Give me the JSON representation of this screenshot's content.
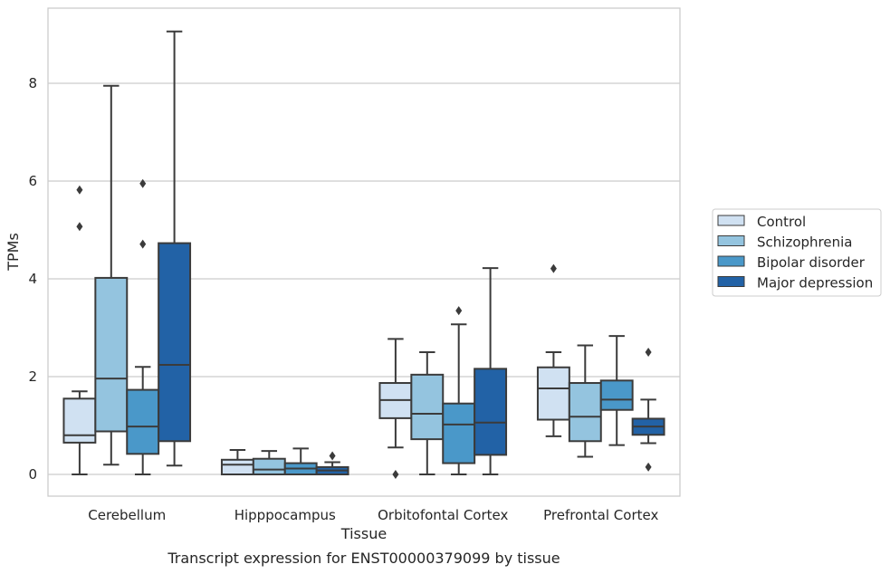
{
  "chart_data": {
    "type": "box",
    "caption": "Transcript expression for ENST00000379099 by tissue",
    "xlabel": "Tissue",
    "ylabel": "TPMs",
    "ylim": [
      -0.45,
      9.6
    ],
    "yticks": [
      0,
      2,
      4,
      6,
      8
    ],
    "grid": true,
    "legend_position": "right",
    "categories": [
      "Cerebellum",
      "Hipppocampus",
      "Orbitofontal Cortex",
      "Prefrontal Cortex"
    ],
    "series": [
      {
        "name": "Control",
        "color": "#d0e1f2",
        "boxes": [
          {
            "whislo": 0.0,
            "q1": 0.65,
            "med": 0.8,
            "q3": 1.55,
            "whishi": 1.7,
            "fliers": [
              5.07,
              5.82
            ]
          },
          {
            "whislo": 0.0,
            "q1": 0.0,
            "med": 0.2,
            "q3": 0.3,
            "whislo_note": "",
            "whishi": 0.5,
            "fliers": []
          },
          {
            "whislo": 0.55,
            "q1": 1.15,
            "med": 1.52,
            "q3": 1.87,
            "whishi": 2.77,
            "fliers": [
              0.0
            ]
          },
          {
            "whislo": 0.78,
            "q1": 1.12,
            "med": 1.76,
            "q3": 2.19,
            "whishi": 2.5,
            "fliers": [
              4.21
            ]
          }
        ]
      },
      {
        "name": "Schizophrenia",
        "color": "#94c4df",
        "boxes": [
          {
            "whislo": 0.2,
            "q1": 0.88,
            "med": 1.96,
            "q3": 4.02,
            "whishi": 7.95,
            "fliers": []
          },
          {
            "whislo": 0.0,
            "q1": 0.0,
            "med": 0.1,
            "q3": 0.32,
            "whishi": 0.48,
            "fliers": []
          },
          {
            "whislo": 0.0,
            "q1": 0.72,
            "med": 1.24,
            "q3": 2.04,
            "whishi": 2.5,
            "fliers": []
          },
          {
            "whislo": 0.36,
            "q1": 0.68,
            "med": 1.18,
            "q3": 1.87,
            "whishi": 2.64,
            "fliers": []
          }
        ]
      },
      {
        "name": "Bipolar disorder",
        "color": "#4a98c9",
        "boxes": [
          {
            "whislo": 0.0,
            "q1": 0.42,
            "med": 0.98,
            "q3": 1.73,
            "whishi": 2.2,
            "fliers": [
              4.71,
              5.95
            ]
          },
          {
            "whislo": 0.0,
            "q1": 0.0,
            "med": 0.12,
            "q3": 0.23,
            "whishi": 0.53,
            "fliers": []
          },
          {
            "whislo": 0.0,
            "q1": 0.23,
            "med": 1.02,
            "q3": 1.45,
            "whishi": 3.07,
            "fliers": [
              3.35
            ]
          },
          {
            "whislo": 0.6,
            "q1": 1.32,
            "med": 1.53,
            "q3": 1.92,
            "whishi": 2.83,
            "fliers": []
          }
        ]
      },
      {
        "name": "Major depression",
        "color": "#2262a6",
        "boxes": [
          {
            "whislo": 0.18,
            "q1": 0.68,
            "med": 2.24,
            "q3": 4.73,
            "whishi": 9.06,
            "fliers": []
          },
          {
            "whislo": 0.0,
            "q1": 0.0,
            "med": 0.08,
            "q3": 0.15,
            "whishi": 0.25,
            "fliers": [
              0.38
            ]
          },
          {
            "whislo": 0.0,
            "q1": 0.4,
            "med": 1.06,
            "q3": 2.16,
            "whishi": 4.22,
            "fliers": []
          },
          {
            "whislo": 0.64,
            "q1": 0.81,
            "med": 0.98,
            "q3": 1.14,
            "whishi": 1.53,
            "fliers": [
              0.15,
              2.5
            ]
          }
        ]
      }
    ]
  }
}
